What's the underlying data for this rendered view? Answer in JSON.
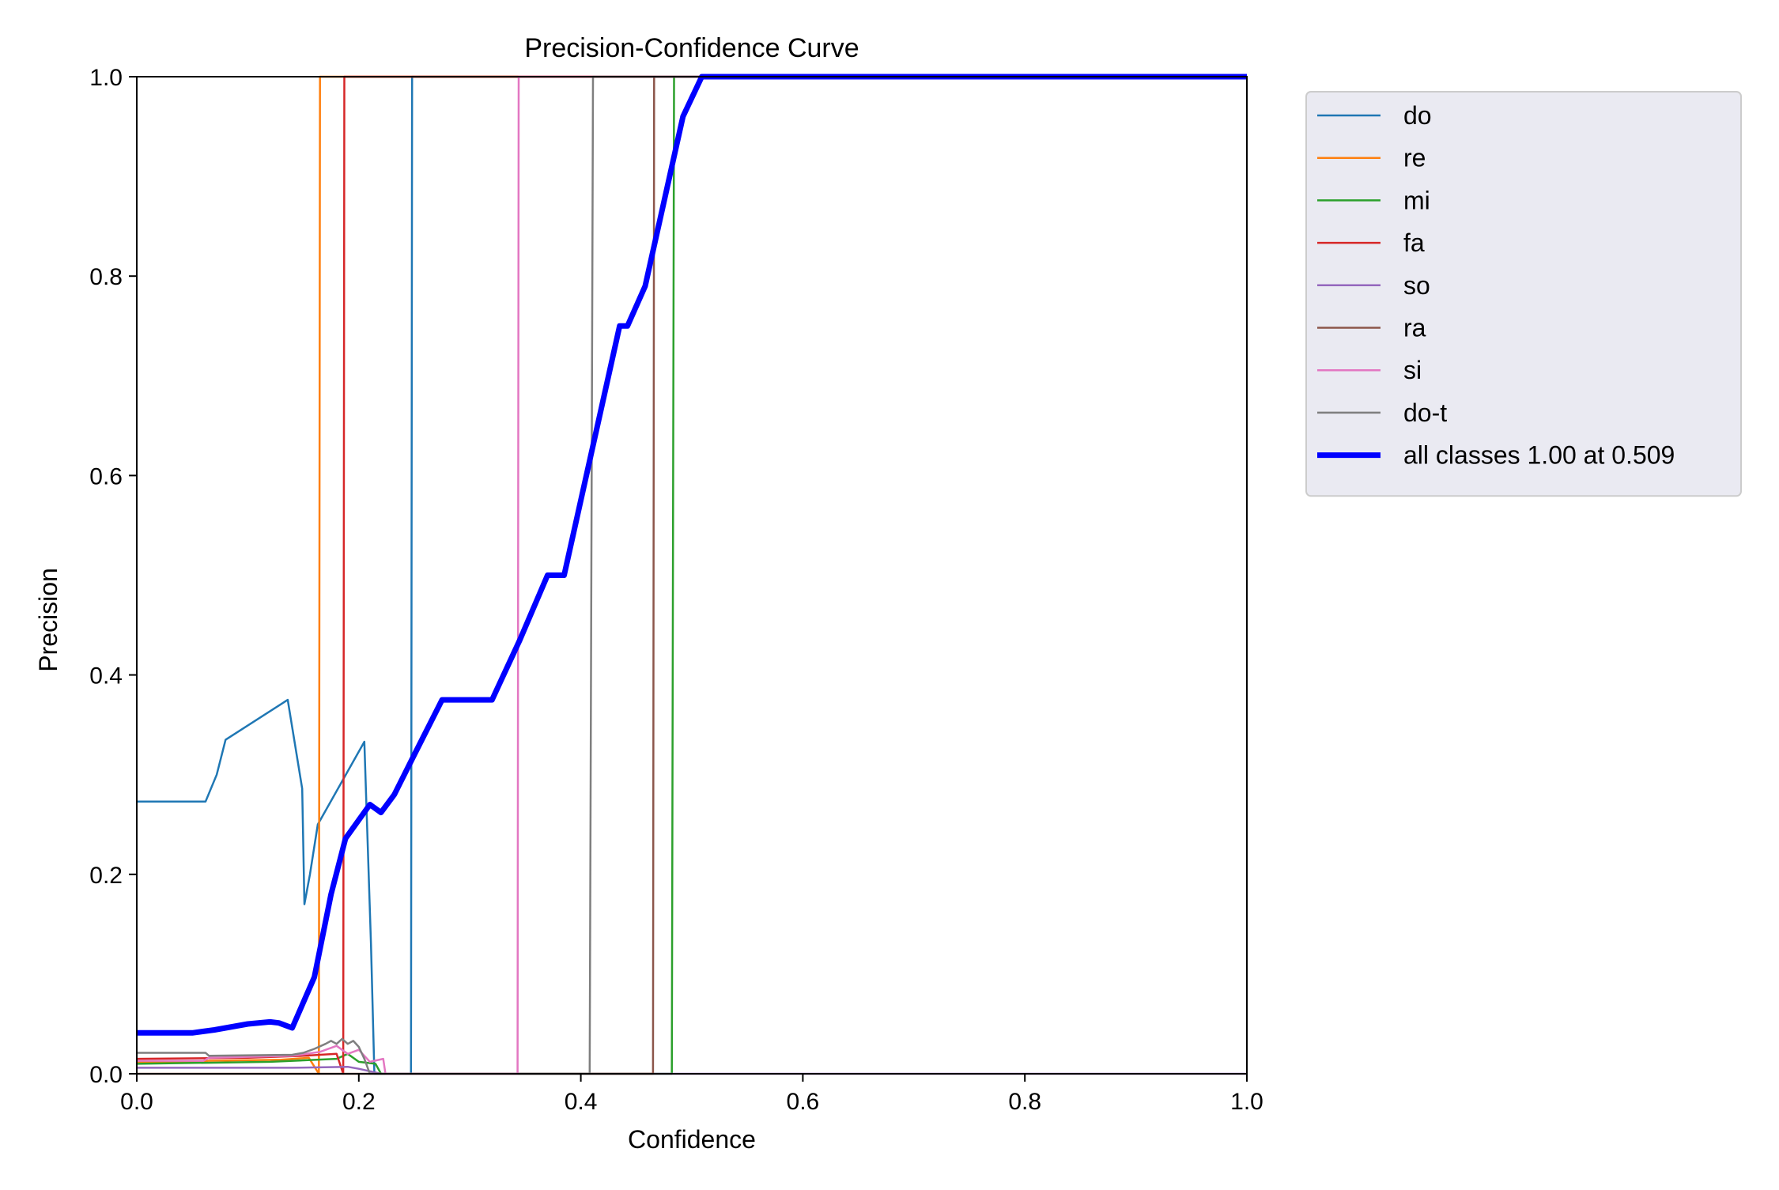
{
  "chart_data": {
    "type": "line",
    "title": "Precision-Confidence Curve",
    "xlabel": "Confidence",
    "ylabel": "Precision",
    "xlim": [
      0,
      1
    ],
    "ylim": [
      0,
      1
    ],
    "xticks": [
      "0.0",
      "0.2",
      "0.4",
      "0.6",
      "0.8",
      "1.0"
    ],
    "yticks": [
      "0.0",
      "0.2",
      "0.4",
      "0.6",
      "0.8",
      "1.0"
    ],
    "grid": false,
    "legend_position": "outside-upper-right",
    "series": [
      {
        "name": "do",
        "color": "#1f77b4",
        "width": 2.5,
        "points": [
          [
            0,
            0.273
          ],
          [
            0.062,
            0.273
          ],
          [
            0.072,
            0.3
          ],
          [
            0.08,
            0.335
          ],
          [
            0.136,
            0.375
          ],
          [
            0.149,
            0.286
          ],
          [
            0.151,
            0.17
          ],
          [
            0.156,
            0.2
          ],
          [
            0.163,
            0.25
          ],
          [
            0.205,
            0.333
          ],
          [
            0.211,
            0.13
          ],
          [
            0.214,
            0.0
          ],
          [
            0.247,
            0.0
          ],
          [
            0.248,
            1.0
          ],
          [
            1.0,
            1.0
          ]
        ]
      },
      {
        "name": "re",
        "color": "#ff7f0e",
        "width": 2.5,
        "points": [
          [
            0,
            0.012
          ],
          [
            0.06,
            0.012
          ],
          [
            0.064,
            0.013
          ],
          [
            0.13,
            0.014
          ],
          [
            0.155,
            0.016
          ],
          [
            0.164,
            0.0
          ],
          [
            0.165,
            1.0
          ],
          [
            1.0,
            1.0
          ]
        ]
      },
      {
        "name": "mi",
        "color": "#2ca02c",
        "width": 2.5,
        "points": [
          [
            0,
            0.01
          ],
          [
            0.12,
            0.012
          ],
          [
            0.18,
            0.015
          ],
          [
            0.19,
            0.02
          ],
          [
            0.2,
            0.012
          ],
          [
            0.215,
            0.01
          ],
          [
            0.22,
            0.0
          ],
          [
            0.482,
            0.0
          ],
          [
            0.484,
            1.0
          ],
          [
            1.0,
            1.0
          ]
        ]
      },
      {
        "name": "fa",
        "color": "#d62728",
        "width": 2.5,
        "points": [
          [
            0,
            0.015
          ],
          [
            0.1,
            0.016
          ],
          [
            0.15,
            0.018
          ],
          [
            0.18,
            0.02
          ],
          [
            0.186,
            0.0
          ],
          [
            0.187,
            1.0
          ],
          [
            1.0,
            1.0
          ]
        ]
      },
      {
        "name": "so",
        "color": "#9467bd",
        "width": 2.5,
        "points": [
          [
            0,
            0.006
          ],
          [
            0.14,
            0.006
          ],
          [
            0.19,
            0.007
          ],
          [
            0.2,
            0.005
          ],
          [
            0.22,
            0.0
          ],
          [
            1.0,
            0.0
          ]
        ]
      },
      {
        "name": "ra",
        "color": "#8c564b",
        "width": 2.5,
        "points": [
          [
            0,
            0.0
          ],
          [
            0.465,
            0.0
          ],
          [
            0.466,
            1.0
          ],
          [
            1.0,
            1.0
          ]
        ]
      },
      {
        "name": "si",
        "color": "#e377c2",
        "width": 2.5,
        "points": [
          [
            0,
            0.013
          ],
          [
            0.06,
            0.013
          ],
          [
            0.065,
            0.016
          ],
          [
            0.14,
            0.018
          ],
          [
            0.165,
            0.022
          ],
          [
            0.18,
            0.028
          ],
          [
            0.19,
            0.02
          ],
          [
            0.2,
            0.024
          ],
          [
            0.21,
            0.012
          ],
          [
            0.222,
            0.015
          ],
          [
            0.224,
            0.0
          ],
          [
            0.343,
            0.0
          ],
          [
            0.344,
            1.0
          ],
          [
            1.0,
            1.0
          ]
        ]
      },
      {
        "name": "do-t",
        "color": "#7f7f7f",
        "width": 2.5,
        "points": [
          [
            0,
            0.021
          ],
          [
            0.062,
            0.021
          ],
          [
            0.065,
            0.018
          ],
          [
            0.14,
            0.019
          ],
          [
            0.15,
            0.021
          ],
          [
            0.16,
            0.025
          ],
          [
            0.17,
            0.03
          ],
          [
            0.175,
            0.033
          ],
          [
            0.18,
            0.03
          ],
          [
            0.185,
            0.035
          ],
          [
            0.19,
            0.03
          ],
          [
            0.195,
            0.033
          ],
          [
            0.2,
            0.027
          ],
          [
            0.205,
            0.015
          ],
          [
            0.21,
            0.0
          ],
          [
            0.408,
            0.0
          ],
          [
            0.411,
            1.0
          ],
          [
            1.0,
            1.0
          ]
        ]
      },
      {
        "name": "all classes 1.00 at 0.509",
        "color": "#0000ff",
        "width": 7,
        "points": [
          [
            0,
            0.041
          ],
          [
            0.05,
            0.041
          ],
          [
            0.07,
            0.044
          ],
          [
            0.1,
            0.05
          ],
          [
            0.12,
            0.052
          ],
          [
            0.128,
            0.051
          ],
          [
            0.14,
            0.046
          ],
          [
            0.16,
            0.097
          ],
          [
            0.175,
            0.18
          ],
          [
            0.188,
            0.236
          ],
          [
            0.21,
            0.27
          ],
          [
            0.22,
            0.262
          ],
          [
            0.232,
            0.28
          ],
          [
            0.25,
            0.32
          ],
          [
            0.275,
            0.375
          ],
          [
            0.32,
            0.375
          ],
          [
            0.345,
            0.435
          ],
          [
            0.37,
            0.5
          ],
          [
            0.385,
            0.5
          ],
          [
            0.435,
            0.75
          ],
          [
            0.442,
            0.75
          ],
          [
            0.458,
            0.79
          ],
          [
            0.48,
            0.9
          ],
          [
            0.492,
            0.96
          ],
          [
            0.509,
            1.0
          ],
          [
            1.0,
            1.0
          ]
        ]
      }
    ]
  }
}
